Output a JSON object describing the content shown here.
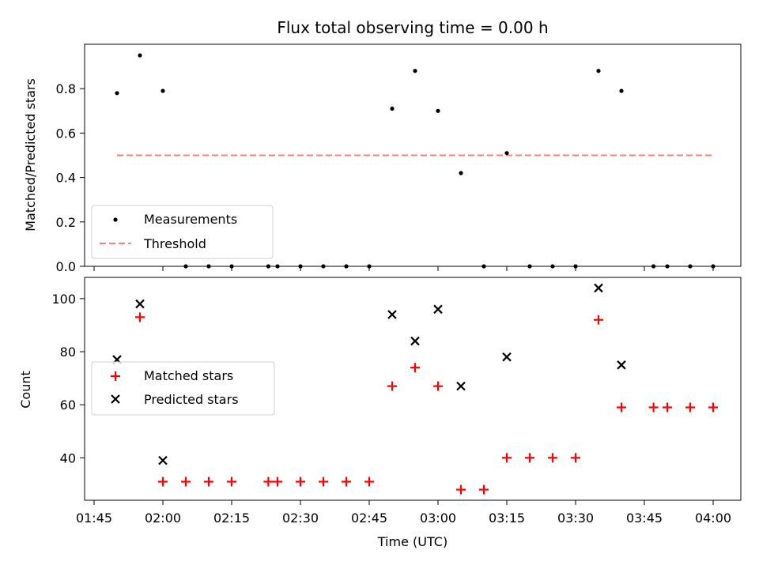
{
  "chart_data": [
    {
      "type": "scatter",
      "title": "Flux total observing time = 0.00 h",
      "ylabel": "Matched/Predicted stars",
      "ylim": [
        0,
        1.0
      ],
      "yticks": [
        0.0,
        0.2,
        0.4,
        0.6,
        0.8
      ],
      "x_time": [
        "01:50",
        "01:55",
        "02:00",
        "02:05",
        "02:10",
        "02:15",
        "02:23",
        "02:25",
        "02:30",
        "02:35",
        "02:40",
        "02:45",
        "02:50",
        "02:55",
        "03:00",
        "03:05",
        "03:10",
        "03:15",
        "03:20",
        "03:25",
        "03:30",
        "03:35",
        "03:40",
        "03:47",
        "03:50",
        "03:55",
        "04:00"
      ],
      "series": [
        {
          "name": "Measurements",
          "color": "#000000",
          "values": [
            0.78,
            0.95,
            0.79,
            0.0,
            0.0,
            0.0,
            0.0,
            0.0,
            0.0,
            0.0,
            0.0,
            0.0,
            0.71,
            0.88,
            0.7,
            0.42,
            0.0,
            0.51,
            0.0,
            0.0,
            0.0,
            0.88,
            0.79,
            0.0,
            0.0,
            0.0,
            0.0
          ]
        },
        {
          "name": "Threshold",
          "color": "#ff7f7f",
          "line_style": "dashed",
          "x": [
            "01:50",
            "04:00"
          ],
          "values": [
            0.5,
            0.5
          ]
        }
      ],
      "legend_position": "lower-left"
    },
    {
      "type": "scatter",
      "xlabel": "Time (UTC)",
      "ylabel": "Count",
      "ylim": [
        24,
        108
      ],
      "yticks": [
        40,
        60,
        80,
        100
      ],
      "xticks": [
        "01:45",
        "02:00",
        "02:15",
        "02:30",
        "02:45",
        "03:00",
        "03:15",
        "03:30",
        "03:45",
        "04:00"
      ],
      "series": [
        {
          "name": "Matched stars",
          "color": "#ff0000",
          "marker": "plus",
          "x": [
            "01:55",
            "02:00",
            "02:05",
            "02:10",
            "02:15",
            "02:23",
            "02:25",
            "02:30",
            "02:35",
            "02:40",
            "02:45",
            "02:50",
            "02:55",
            "03:00",
            "03:05",
            "03:10",
            "03:15",
            "03:20",
            "03:25",
            "03:30",
            "03:35",
            "03:40",
            "03:47",
            "03:50",
            "03:55",
            "04:00"
          ],
          "values": [
            93,
            31,
            31,
            31,
            31,
            31,
            31,
            31,
            31,
            31,
            31,
            67,
            74,
            67,
            28,
            28,
            40,
            40,
            40,
            40,
            92,
            59,
            59,
            59,
            59,
            59
          ]
        },
        {
          "name": "Predicted stars",
          "color": "#000000",
          "marker": "x",
          "x": [
            "01:50",
            "01:55",
            "02:00",
            "02:50",
            "02:55",
            "03:00",
            "03:05",
            "03:15",
            "03:35",
            "03:40"
          ],
          "values": [
            77,
            98,
            39,
            94,
            84,
            96,
            67,
            78,
            104,
            75
          ]
        }
      ],
      "legend_position": "center-left"
    }
  ]
}
